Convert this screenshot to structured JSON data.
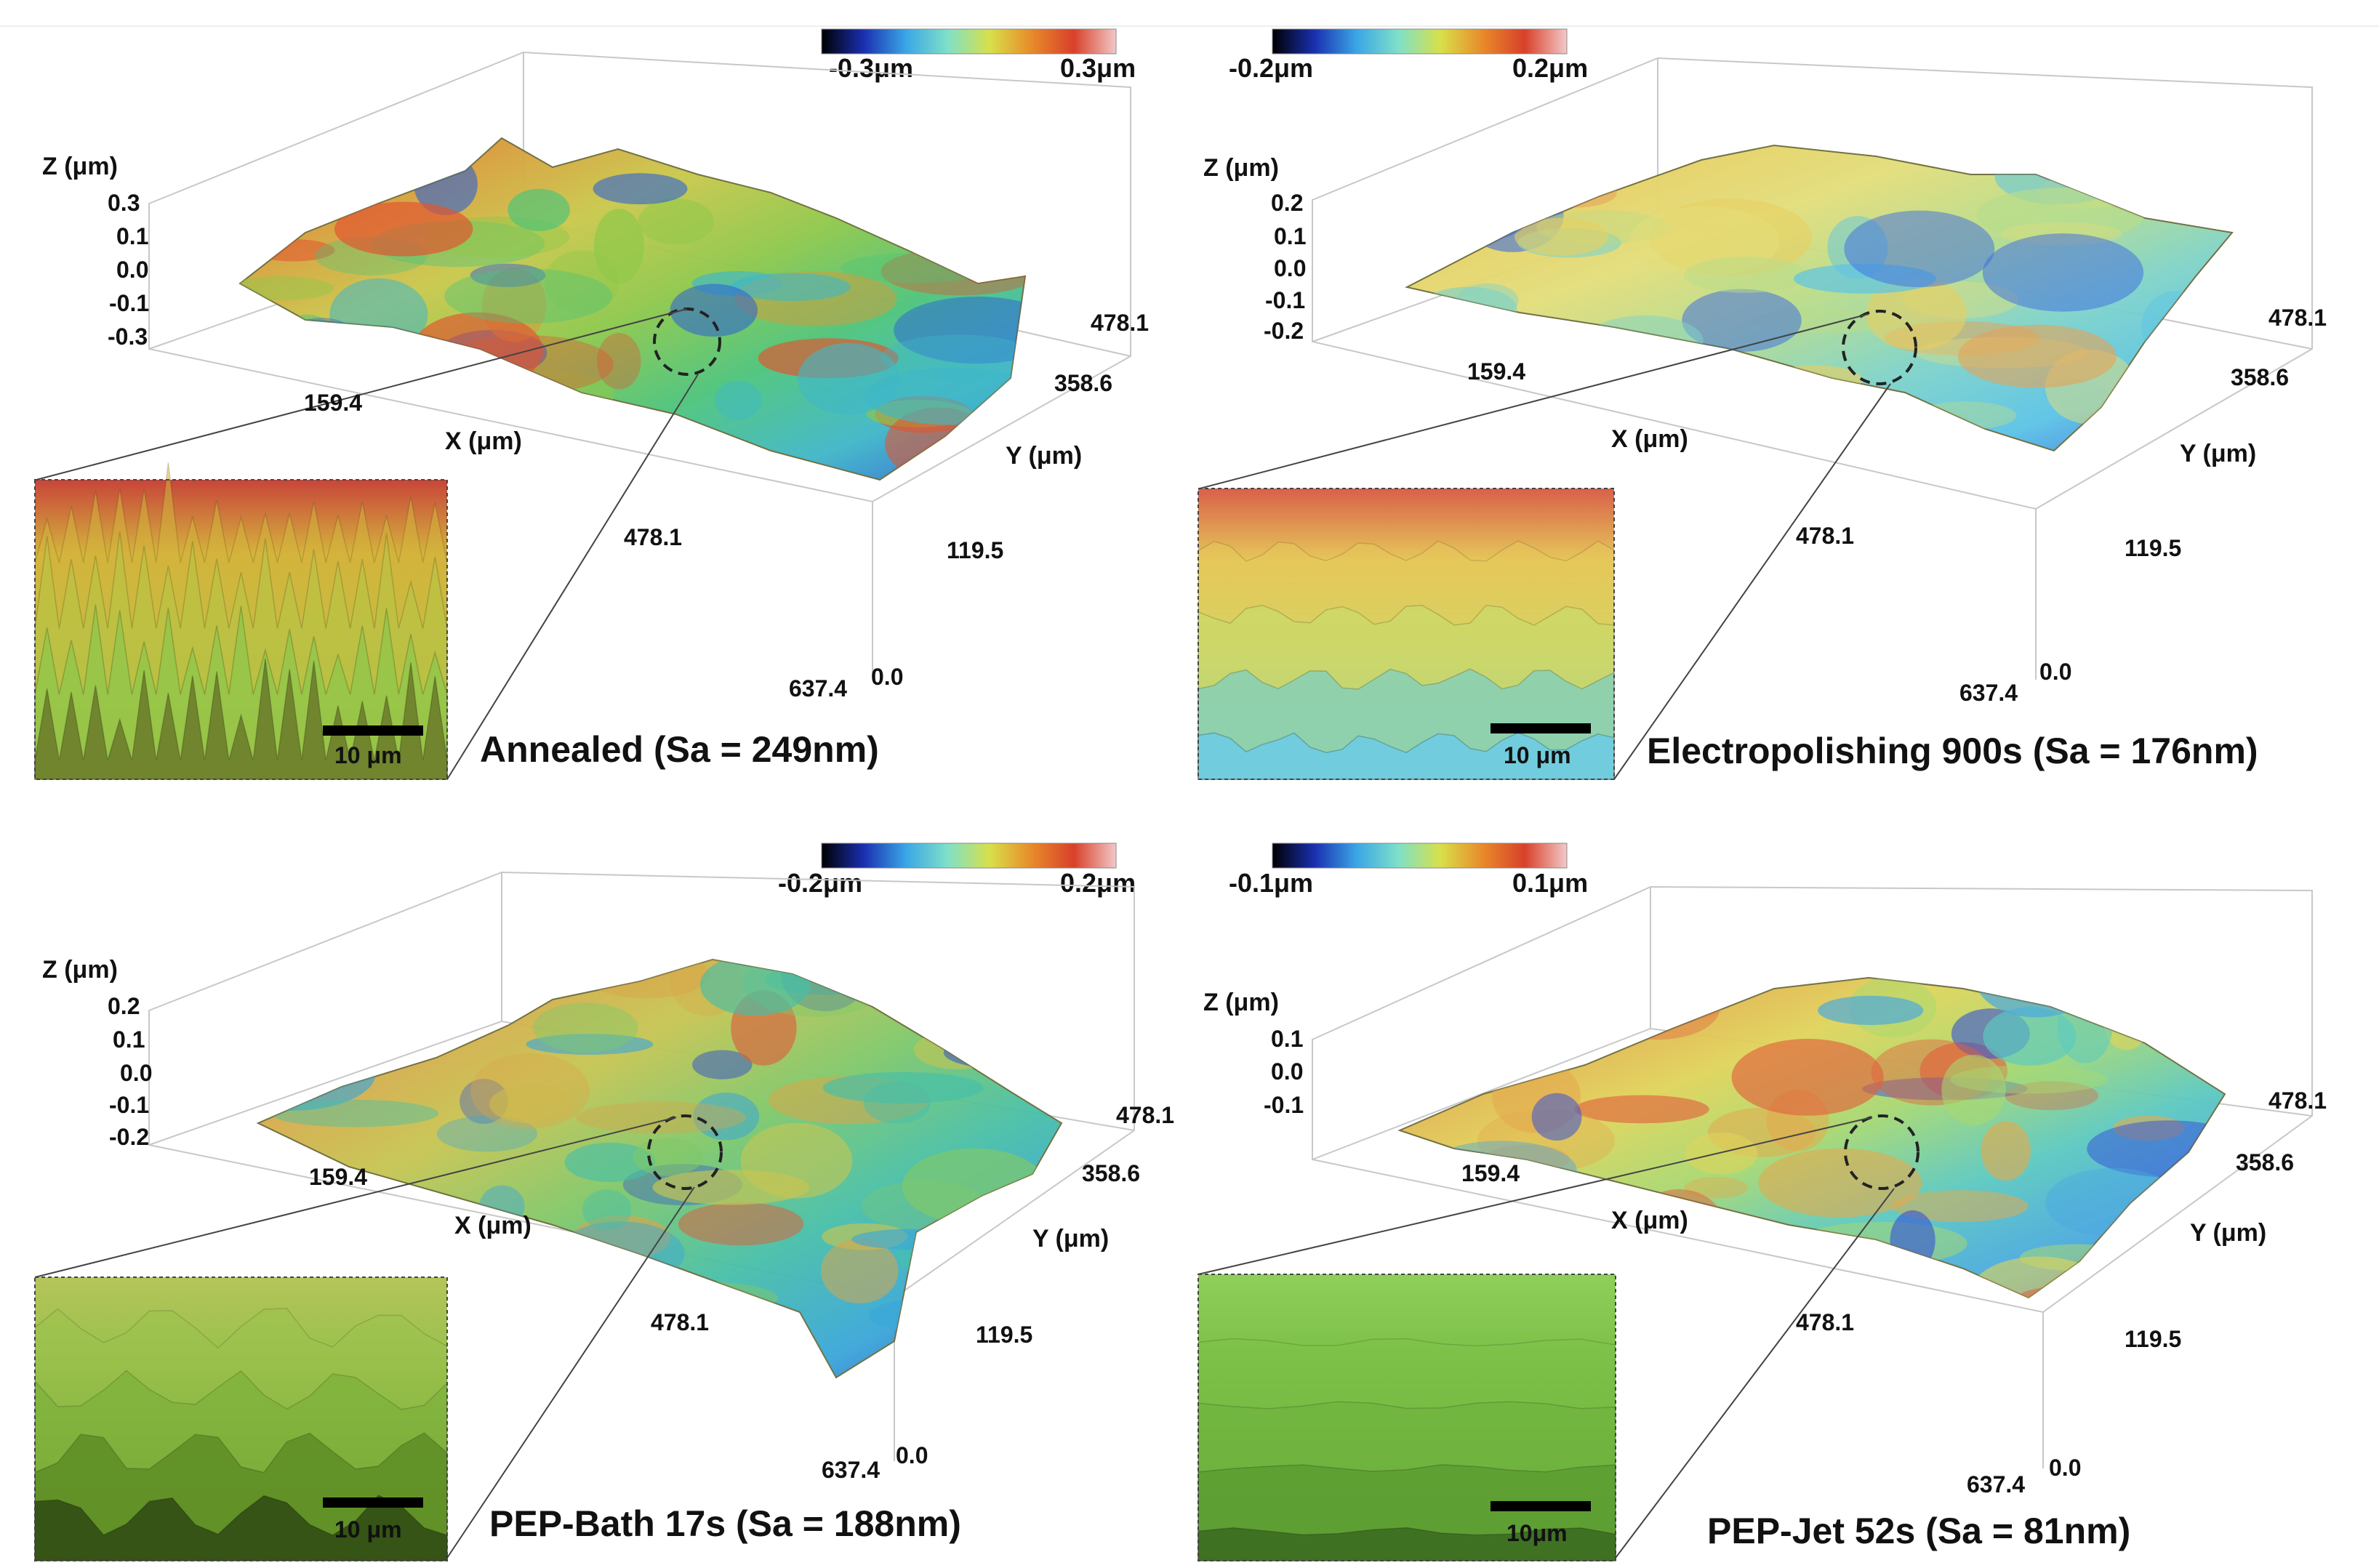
{
  "panels": [
    {
      "title": "Annealed (Sa = 249nm)",
      "colorbar": {
        "min_label": "-0.3μm",
        "max_label": "0.3μm"
      },
      "z_axis": {
        "label": "Z (μm)",
        "ticks": [
          "0.3",
          "0.1",
          "0.0",
          "-0.1",
          "-0.3"
        ]
      },
      "x_axis": {
        "label": "X (μm)",
        "ticks": [
          "159.4",
          "478.1",
          "637.4"
        ]
      },
      "y_axis": {
        "label": "Y (μm)",
        "ticks": [
          "478.1",
          "358.6",
          "119.5",
          "0.0"
        ]
      },
      "scale_bar": "10 μm",
      "surface_palette": [
        "#e05530",
        "#d99a3a",
        "#c9c84a",
        "#8fc84a",
        "#4cc47a",
        "#3fb7c8",
        "#2a5fd6"
      ],
      "inset_palette": [
        "#c8453a",
        "#d4b43c",
        "#b9c445",
        "#8fc74a",
        "#6a7b2a"
      ]
    },
    {
      "title": "Electropolishing 900s (Sa = 176nm)",
      "colorbar": {
        "min_label": "-0.2μm",
        "max_label": "0.2μm"
      },
      "z_axis": {
        "label": "Z (μm)",
        "ticks": [
          "0.2",
          "0.1",
          "0.0",
          "-0.1",
          "-0.2"
        ]
      },
      "x_axis": {
        "label": "X (μm)",
        "ticks": [
          "159.4",
          "478.1",
          "637.4"
        ]
      },
      "y_axis": {
        "label": "Y (μm)",
        "ticks": [
          "478.1",
          "358.6",
          "119.5",
          "0.0"
        ]
      },
      "scale_bar": "10 μm",
      "surface_palette": [
        "#e3a35a",
        "#e6cf62",
        "#e3de7a",
        "#b8dc8a",
        "#7fd3c8",
        "#5bc4e6",
        "#3f6ee0"
      ],
      "inset_palette": [
        "#d9604a",
        "#e6c85a",
        "#c9dc6a",
        "#7fd0c0",
        "#6ccde6"
      ]
    },
    {
      "title": "PEP-Bath 17s (Sa = 188nm)",
      "colorbar": {
        "min_label": "-0.2μm",
        "max_label": "0.2μm"
      },
      "z_axis": {
        "label": "Z (μm)",
        "ticks": [
          "0.2",
          "0.1",
          "0.0",
          "-0.1",
          "-0.2"
        ]
      },
      "x_axis": {
        "label": "X (μm)",
        "ticks": [
          "159.4",
          "478.1",
          "637.4"
        ]
      },
      "y_axis": {
        "label": "Y (μm)",
        "ticks": [
          "478.1",
          "358.6",
          "119.5",
          "0.0"
        ]
      },
      "scale_bar": "10 μm",
      "surface_palette": [
        "#d9623e",
        "#d9a64a",
        "#c6c552",
        "#7fc86a",
        "#47bfa8",
        "#3aa6d9",
        "#2f4fd0"
      ],
      "inset_palette": [
        "#b5c45a",
        "#9cc24d",
        "#7bb03a",
        "#5a8a22",
        "#2e4a12"
      ]
    },
    {
      "title": "PEP-Jet 52s (Sa = 81nm)",
      "colorbar": {
        "min_label": "-0.1μm",
        "max_label": "0.1μm"
      },
      "z_axis": {
        "label": "Z (μm)",
        "ticks": [
          "0.1",
          "0.0",
          "-0.1"
        ]
      },
      "x_axis": {
        "label": "X (μm)",
        "ticks": [
          "159.4",
          "478.1",
          "637.4"
        ]
      },
      "y_axis": {
        "label": "Y (μm)",
        "ticks": [
          "478.1",
          "358.6",
          "119.5",
          "0.0"
        ]
      },
      "scale_bar": "10μm",
      "surface_palette": [
        "#e0623e",
        "#e3aa4e",
        "#e0d45a",
        "#a8d870",
        "#5cc9c0",
        "#4aa8e0",
        "#3552d6"
      ],
      "inset_palette": [
        "#8fcf5a",
        "#7fc24a",
        "#6fb43e",
        "#5a9a30",
        "#3a6a20"
      ]
    }
  ],
  "colorbar_gradient": [
    "#000000",
    "#1a2fb0",
    "#3aa6e6",
    "#7fe0c8",
    "#d8e04a",
    "#e88a2a",
    "#d8402a",
    "#f2c8c8"
  ]
}
